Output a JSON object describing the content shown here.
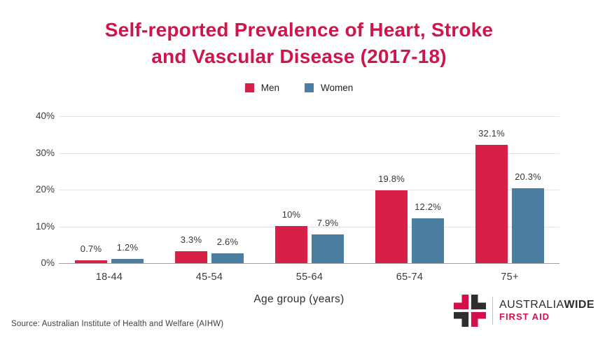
{
  "colors": {
    "title": "#d1154b",
    "men": "#d81f47",
    "women": "#4c7ea2",
    "grid": "#e4e4e4",
    "axis": "#9f9f9f",
    "logo_red": "#d2114a",
    "logo_dark": "#2e2e2e"
  },
  "title": {
    "line1": "Self-reported Prevalence of Heart, Stroke",
    "line2": "and Vascular Disease (2017-18)"
  },
  "legend": [
    {
      "label": "Men",
      "color": "#d81f47"
    },
    {
      "label": "Women",
      "color": "#4c7ea2"
    }
  ],
  "chart_data": {
    "type": "bar",
    "title": "Self-reported Prevalence of Heart, Stroke and Vascular Disease (2017-18)",
    "categories": [
      "18-44",
      "45-54",
      "55-64",
      "65-74",
      "75+"
    ],
    "series": [
      {
        "name": "Men",
        "color": "#d81f47",
        "values": [
          0.7,
          3.3,
          10,
          19.8,
          32.1
        ],
        "labels": [
          "0.7%",
          "3.3%",
          "10%",
          "19.8%",
          "32.1%"
        ]
      },
      {
        "name": "Women",
        "color": "#4c7ea2",
        "values": [
          1.2,
          2.6,
          7.9,
          12.2,
          20.3
        ],
        "labels": [
          "1.2%",
          "2.6%",
          "7.9%",
          "12.2%",
          "20.3%"
        ]
      }
    ],
    "xlabel": "Age group (years)",
    "ylabel": "",
    "ylim": [
      0,
      40
    ],
    "yticks": [
      0,
      10,
      20,
      30,
      40
    ],
    "ytick_labels": [
      "0%",
      "10%",
      "20%",
      "30%",
      "40%"
    ],
    "grid": true,
    "legend_position": "top"
  },
  "xaxis_title": "Age group (years)",
  "source": "Source: Australian Institute of Health and Welfare (AIHW)",
  "logo": {
    "brand_part1": "AUSTRALIA",
    "brand_part2": "WIDE",
    "subtitle": "FIRST AID"
  }
}
